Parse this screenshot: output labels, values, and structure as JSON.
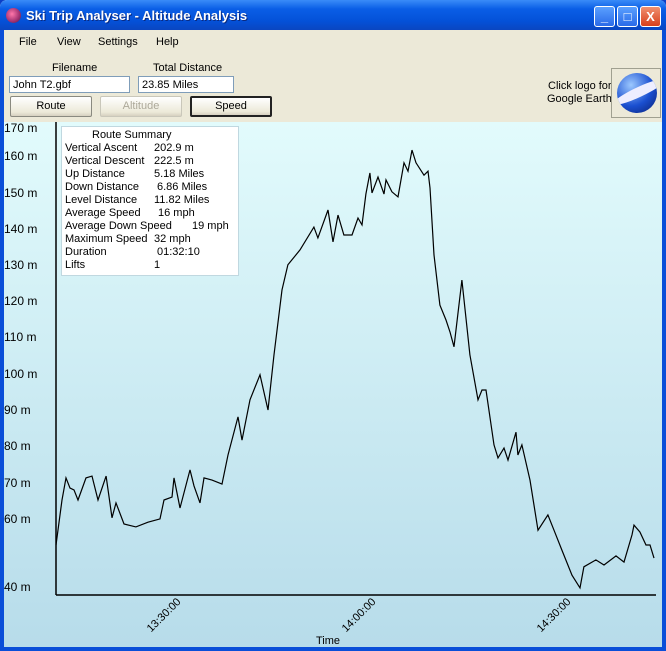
{
  "window": {
    "title": "Ski Trip Analyser - Altitude Analysis",
    "minimize": "_",
    "maximize": "□",
    "close": "X"
  },
  "menu": [
    "File",
    "View",
    "Settings",
    "Help"
  ],
  "fields": {
    "filename_label": "Filename",
    "filename_value": "John T2.gbf",
    "distance_label": "Total Distance",
    "distance_value": "23.85 Miles"
  },
  "buttons": {
    "route": "Route",
    "altitude": "Altitude",
    "speed": "Speed"
  },
  "google_earth": {
    "line1": "Click logo for",
    "line2": "Google Earth"
  },
  "summary": {
    "title": "Route Summary",
    "rows": [
      {
        "label": "Vertical Ascent",
        "value": "202.9 m"
      },
      {
        "label": "Vertical Descent",
        "value": "222.5 m"
      },
      {
        "label": "Up Distance",
        "value": "5.18 Miles"
      },
      {
        "label": "Down Distance",
        "value": "6.86 Miles"
      },
      {
        "label": "Level Distance",
        "value": "11.82 Miles"
      },
      {
        "label": "Average Speed",
        "value": "16 mph"
      },
      {
        "label": "Average Down Speed",
        "value": "19 mph"
      },
      {
        "label": "Maximum Speed",
        "value": "32 mph"
      },
      {
        "label": "Duration",
        "value": "01:32:10"
      },
      {
        "label": "Lifts",
        "value": "1"
      }
    ]
  },
  "chart_data": {
    "type": "line",
    "xlabel": "Time",
    "ylabel": "",
    "y_tick_labels": [
      "170 m",
      "160 m",
      "150 m",
      "140 m",
      "130 m",
      "120 m",
      "110 m",
      "100 m",
      "90 m",
      "80 m",
      "70 m",
      "60 m",
      "40 m"
    ],
    "x_tick_labels": [
      "13:30:00",
      "14:00:00",
      "14:30:00"
    ],
    "xlim": [
      "13:14:00",
      "14:46:00"
    ],
    "ylim": [
      40,
      170
    ],
    "grid": false,
    "line_color": "#000000",
    "points": [
      [
        "13:14:00",
        53.1
      ],
      [
        "13:14:55",
        65.5
      ],
      [
        "13:15:32",
        71.6
      ],
      [
        "13:16:09",
        68.8
      ],
      [
        "13:16:46",
        68.3
      ],
      [
        "13:17:23",
        65.5
      ],
      [
        "13:18:37",
        71.6
      ],
      [
        "13:19:32",
        72.1
      ],
      [
        "13:20:28",
        65.5
      ],
      [
        "13:21:42",
        72.1
      ],
      [
        "13:22:37",
        60.6
      ],
      [
        "13:23:14",
        64.7
      ],
      [
        "13:24:28",
        58.9
      ],
      [
        "13:26:18",
        58.1
      ],
      [
        "13:28:09",
        59.4
      ],
      [
        "13:30:00",
        60.3
      ],
      [
        "13:30:37",
        65.5
      ],
      [
        "13:31:51",
        66.3
      ],
      [
        "13:32:09",
        71.6
      ],
      [
        "13:33:05",
        63.3
      ],
      [
        "13:34:37",
        73.8
      ],
      [
        "13:35:14",
        69.4
      ],
      [
        "13:36:09",
        64.7
      ],
      [
        "13:36:46",
        71.6
      ],
      [
        "13:38:00",
        71.0
      ],
      [
        "13:39:32",
        69.9
      ],
      [
        "13:40:28",
        77.9
      ],
      [
        "13:42:00",
        88.4
      ],
      [
        "13:42:37",
        82.0
      ],
      [
        "13:43:51",
        93.1
      ],
      [
        "13:45:23",
        100.0
      ],
      [
        "13:46:37",
        90.3
      ],
      [
        "13:47:32",
        105.5
      ],
      [
        "13:48:46",
        123.4
      ],
      [
        "13:49:41",
        130.3
      ],
      [
        "13:51:32",
        134.4
      ],
      [
        "13:53:41",
        140.7
      ],
      [
        "13:54:18",
        137.7
      ],
      [
        "13:55:51",
        145.4
      ],
      [
        "13:56:37",
        136.6
      ],
      [
        "13:57:23",
        144.0
      ],
      [
        "13:58:18",
        138.5
      ],
      [
        "13:59:32",
        138.5
      ],
      [
        "14:00:28",
        143.2
      ],
      [
        "14:01:05",
        141.3
      ],
      [
        "14:01:41",
        149.8
      ],
      [
        "14:02:18",
        155.6
      ],
      [
        "14:02:37",
        150.1
      ],
      [
        "14:03:32",
        154.5
      ],
      [
        "14:04:28",
        149.8
      ],
      [
        "14:04:46",
        153.7
      ],
      [
        "14:05:41",
        150.4
      ],
      [
        "14:06:37",
        149.0
      ],
      [
        "14:07:32",
        158.4
      ],
      [
        "14:08:09",
        156.1
      ],
      [
        "14:08:46",
        161.9
      ],
      [
        "14:09:23",
        158.4
      ],
      [
        "14:10:37",
        155.0
      ],
      [
        "14:11:14",
        156.1
      ],
      [
        "14:11:32",
        151.5
      ],
      [
        "14:12:09",
        133.0
      ],
      [
        "14:13:04",
        119.2
      ],
      [
        "14:14:00",
        115.1
      ],
      [
        "14:14:37",
        111.8
      ],
      [
        "14:15:14",
        107.7
      ],
      [
        "14:16:27",
        126.1
      ],
      [
        "14:17:41",
        105.5
      ],
      [
        "14:18:55",
        93.1
      ],
      [
        "14:19:32",
        95.8
      ],
      [
        "14:20:09",
        95.8
      ],
      [
        "14:21:23",
        80.7
      ],
      [
        "14:22:00",
        77.1
      ],
      [
        "14:22:55",
        79.8
      ],
      [
        "14:23:32",
        76.5
      ],
      [
        "14:24:46",
        84.2
      ],
      [
        "14:25:04",
        77.9
      ],
      [
        "14:25:41",
        80.7
      ],
      [
        "14:26:55",
        71.0
      ],
      [
        "14:28:09",
        57.2
      ],
      [
        "14:29:41",
        61.4
      ],
      [
        "14:30:37",
        57.2
      ],
      [
        "14:31:50",
        51.7
      ],
      [
        "14:33:23",
        44.8
      ],
      [
        "14:34:37",
        41.3
      ],
      [
        "14:35:13",
        47.1
      ],
      [
        "14:37:04",
        49.0
      ],
      [
        "14:38:18",
        47.6
      ],
      [
        "14:40:09",
        50.1
      ],
      [
        "14:41:23",
        48.4
      ],
      [
        "14:42:37",
        55.9
      ],
      [
        "14:42:55",
        58.6
      ],
      [
        "14:43:50",
        56.7
      ],
      [
        "14:44:46",
        53.1
      ],
      [
        "14:45:23",
        53.1
      ],
      [
        "14:46:00",
        49.5
      ]
    ]
  }
}
